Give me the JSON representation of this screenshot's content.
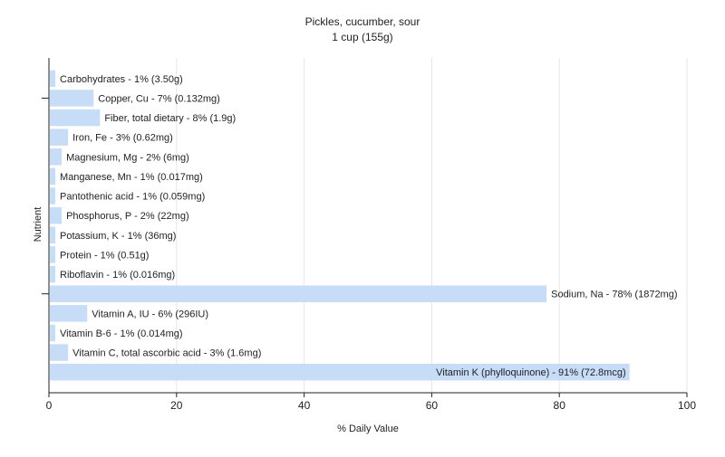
{
  "chart_data": {
    "type": "bar",
    "orientation": "horizontal",
    "title": "Pickles, cucumber, sour",
    "subtitle": "1 cup (155g)",
    "xlabel": "% Daily Value",
    "ylabel": "Nutrient",
    "xlim": [
      0,
      100
    ],
    "xticks": [
      0,
      20,
      40,
      60,
      80,
      100
    ],
    "grid": true,
    "legend": "none",
    "bar_color": "#c6dcf7",
    "categories": [
      "Carbohydrates",
      "Copper, Cu",
      "Fiber, total dietary",
      "Iron, Fe",
      "Magnesium, Mg",
      "Manganese, Mn",
      "Pantothenic acid",
      "Phosphorus, P",
      "Potassium, K",
      "Protein",
      "Riboflavin",
      "Sodium, Na",
      "Vitamin A, IU",
      "Vitamin B-6",
      "Vitamin C, total ascorbic acid",
      "Vitamin K (phylloquinone)"
    ],
    "values": [
      1,
      7,
      8,
      3,
      2,
      1,
      1,
      2,
      1,
      1,
      1,
      78,
      6,
      1,
      3,
      91
    ],
    "labels": [
      "Carbohydrates - 1% (3.50g)",
      "Copper, Cu - 7% (0.132mg)",
      "Fiber, total dietary - 8% (1.9g)",
      "Iron, Fe - 3% (0.62mg)",
      "Magnesium, Mg - 2% (6mg)",
      "Manganese, Mn - 1% (0.017mg)",
      "Pantothenic acid - 1% (0.059mg)",
      "Phosphorus, P - 2% (22mg)",
      "Potassium, K - 1% (36mg)",
      "Protein - 1% (0.51g)",
      "Riboflavin - 1% (0.016mg)",
      "Sodium, Na - 78% (1872mg)",
      "Vitamin A, IU - 6% (296IU)",
      "Vitamin B-6 - 1% (0.014mg)",
      "Vitamin C, total ascorbic acid - 3% (1.6mg)",
      "Vitamin K (phylloquinone) - 91% (72.8mcg)"
    ]
  }
}
